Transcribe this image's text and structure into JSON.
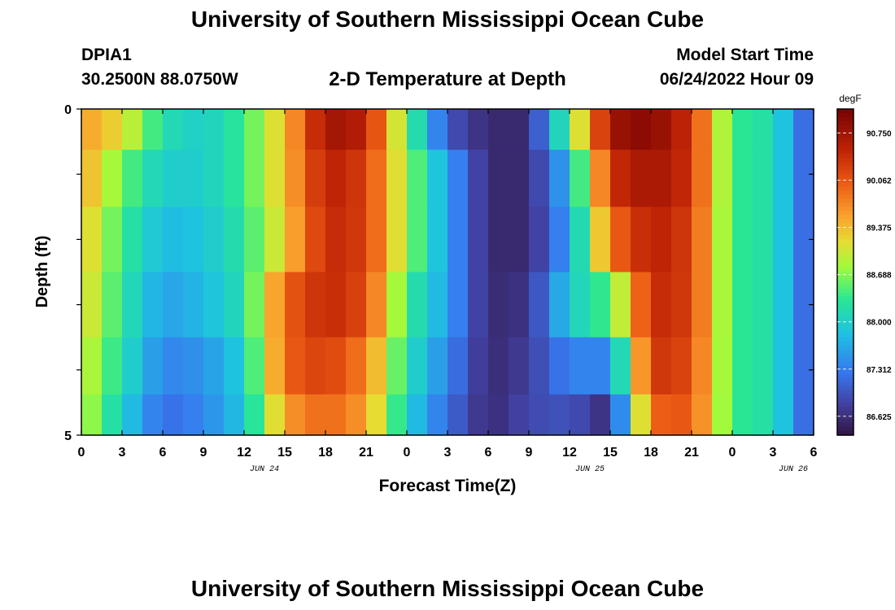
{
  "header": {
    "title": "University of Southern Mississippi Ocean Cube",
    "station": "DPIA1",
    "coords": "30.2500N  88.0750W",
    "plot_title": "2-D Temperature at Depth",
    "model_start_label": "Model Start Time",
    "model_start_value": "06/24/2022 Hour 09"
  },
  "footer": {
    "title": "University of Southern Mississippi Ocean Cube"
  },
  "chart_data": {
    "type": "heatmap",
    "title": "2-D Temperature at Depth",
    "xlabel": "Forecast Time(Z)",
    "ylabel": "Depth (ft)",
    "x_tick_labels": [
      "0",
      "3",
      "6",
      "9",
      "12",
      "15",
      "18",
      "21",
      "0",
      "3",
      "6",
      "9",
      "12",
      "15",
      "18",
      "21",
      "0",
      "3",
      "6"
    ],
    "date_labels": [
      "JUN 24",
      "JUN 25",
      "JUN 26"
    ],
    "date_label_tick_index": [
      4,
      12,
      17
    ],
    "y_tick_labels": [
      "0",
      "5"
    ],
    "ylim": [
      0,
      5
    ],
    "x_hours_from_jun24_00": [
      0,
      3,
      6,
      9,
      12,
      15,
      18,
      21,
      24,
      27,
      30,
      33,
      36,
      39,
      42,
      45,
      48,
      51,
      54
    ],
    "depth_layers_ft": [
      0.25,
      1.0,
      2.0,
      3.0,
      4.0,
      4.75
    ],
    "values_degF": [
      [
        89.6,
        89.2,
        88.2,
        88.0,
        88.4,
        89.4,
        90.8,
        90.6,
        88.6,
        87.0,
        86.6,
        86.6,
        88.6,
        90.8,
        91.0,
        90.4,
        88.4,
        88.2,
        86.9
      ],
      [
        89.6,
        88.6,
        88.0,
        88.0,
        88.4,
        89.4,
        90.6,
        90.3,
        88.8,
        87.6,
        86.6,
        86.6,
        87.8,
        90.4,
        90.8,
        90.4,
        88.4,
        88.2,
        86.9
      ],
      [
        89.4,
        88.4,
        87.8,
        87.9,
        88.3,
        89.3,
        90.5,
        90.3,
        88.8,
        87.6,
        86.6,
        86.6,
        87.6,
        89.9,
        90.6,
        90.3,
        88.4,
        88.2,
        86.9
      ],
      [
        89.3,
        88.3,
        87.6,
        87.8,
        88.2,
        90.0,
        90.5,
        90.2,
        88.4,
        87.6,
        86.6,
        86.7,
        88.0,
        88.5,
        90.5,
        90.3,
        88.4,
        88.2,
        86.9
      ],
      [
        89.1,
        88.2,
        87.4,
        87.5,
        88.0,
        90.0,
        90.3,
        89.8,
        88.2,
        87.4,
        86.6,
        86.8,
        87.4,
        87.4,
        90.4,
        90.2,
        88.4,
        88.2,
        86.9
      ],
      [
        89.0,
        88.0,
        87.2,
        87.4,
        87.9,
        89.6,
        90.0,
        89.6,
        88.0,
        87.2,
        86.6,
        86.9,
        87.0,
        86.6,
        90.0,
        90.1,
        88.4,
        88.2,
        86.9
      ]
    ],
    "colorbar": {
      "unit": "degF",
      "tick_labels": [
        "90.750",
        "90.062",
        "89.375",
        "88.688",
        "88.000",
        "87.312",
        "86.625"
      ],
      "range": [
        86.35,
        91.1
      ]
    },
    "grid": false,
    "legend": "colorbar right"
  }
}
